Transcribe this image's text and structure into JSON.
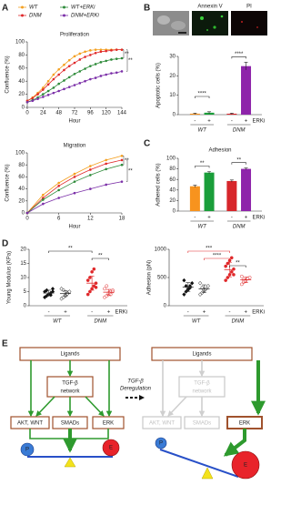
{
  "panels": [
    "A",
    "B",
    "C",
    "D",
    "E"
  ],
  "images": {
    "labels": [
      "Annexin V",
      "PI"
    ]
  },
  "chart_data": [
    {
      "type": "line",
      "title": "Proliferation",
      "xlabel": "Hour",
      "ylabel": "Confluence (%)",
      "x": [
        0,
        8,
        16,
        24,
        32,
        40,
        48,
        56,
        64,
        72,
        80,
        88,
        96,
        104,
        112,
        120,
        128,
        136,
        144
      ],
      "xlim": [
        0,
        144
      ],
      "xticks": [
        0,
        24,
        48,
        72,
        96,
        120,
        144
      ],
      "ylim": [
        0,
        100
      ],
      "yticks": [
        0,
        20,
        40,
        60,
        80,
        100
      ],
      "series": [
        {
          "name": "WT",
          "color": "#f4a020",
          "values": [
            10,
            15,
            22,
            30,
            40,
            50,
            58,
            65,
            72,
            78,
            82,
            85,
            87,
            88,
            88,
            88,
            88,
            88,
            88
          ]
        },
        {
          "name": "DNM",
          "color": "#e0282a",
          "values": [
            10,
            14,
            20,
            27,
            35,
            43,
            50,
            57,
            63,
            68,
            73,
            77,
            80,
            83,
            85,
            86,
            87,
            88,
            88
          ]
        },
        {
          "name": "WT+ERKi",
          "color": "#2e8b3a",
          "values": [
            8,
            11,
            15,
            20,
            25,
            30,
            36,
            41,
            46,
            51,
            55,
            59,
            63,
            66,
            69,
            71,
            73,
            74,
            75
          ]
        },
        {
          "name": "DNM+ERKi",
          "color": "#7b2fa8",
          "values": [
            8,
            10,
            13,
            16,
            19,
            22,
            25,
            28,
            31,
            34,
            37,
            40,
            43,
            45,
            48,
            50,
            52,
            53,
            55
          ]
        }
      ],
      "annotations": [
        "**",
        "**"
      ]
    },
    {
      "type": "line",
      "title": "Migration",
      "xlabel": "Hour",
      "ylabel": "Confluence (%)",
      "x": [
        0,
        3,
        6,
        9,
        12,
        15,
        18
      ],
      "xlim": [
        0,
        18
      ],
      "xticks": [
        0,
        6,
        12,
        18
      ],
      "ylim": [
        0,
        100
      ],
      "yticks": [
        0,
        20,
        40,
        60,
        80,
        100
      ],
      "series": [
        {
          "color": "#f4a020",
          "values": [
            0,
            30,
            50,
            65,
            78,
            88,
            95
          ]
        },
        {
          "color": "#e0282a",
          "values": [
            0,
            25,
            45,
            60,
            72,
            82,
            88
          ]
        },
        {
          "color": "#2e8b3a",
          "values": [
            0,
            22,
            38,
            52,
            63,
            73,
            80
          ]
        },
        {
          "color": "#7b2fa8",
          "values": [
            0,
            15,
            25,
            33,
            40,
            47,
            52
          ]
        }
      ],
      "annotations": [
        "**",
        "**"
      ]
    },
    {
      "type": "bar",
      "ylabel": "Apoptotic cells (%)",
      "categories": [
        "-",
        "+",
        "-",
        "+"
      ],
      "groups": [
        "WT",
        "DNM"
      ],
      "treatment": "ERKi",
      "values": [
        0.5,
        1,
        0.5,
        25
      ],
      "errors": [
        0.3,
        0.5,
        0.3,
        2
      ],
      "colors": [
        "#f7931e",
        "#1a9e3a",
        "#d7262b",
        "#8e24aa"
      ],
      "ylim": [
        0,
        30
      ],
      "yticks": [
        0,
        10,
        20,
        30
      ],
      "annotations": [
        "****",
        "****"
      ]
    },
    {
      "type": "bar",
      "title": "Adhesion",
      "ylabel": "Adhered cells (%)",
      "categories": [
        "-",
        "+",
        "-",
        "+"
      ],
      "groups": [
        "WT",
        "DNM"
      ],
      "treatment": "ERKi",
      "values": [
        47,
        73,
        57,
        80
      ],
      "errors": [
        2,
        2,
        2,
        1.5
      ],
      "colors": [
        "#f7931e",
        "#1a9e3a",
        "#d7262b",
        "#8e24aa"
      ],
      "ylim": [
        0,
        100
      ],
      "yticks": [
        0,
        20,
        40,
        60,
        80,
        100
      ],
      "annotations": [
        "**",
        "**"
      ]
    },
    {
      "type": "strip",
      "ylabel": "Young Modulus (KPa)",
      "categories": [
        "-",
        "+",
        "-",
        "+"
      ],
      "groups": [
        "WT",
        "DNM"
      ],
      "treatment": "ERKi",
      "points": [
        [
          3,
          3.5,
          4,
          4.5,
          5,
          5,
          5.5,
          4,
          3.8,
          6
        ],
        [
          2.5,
          3,
          4,
          4.5,
          5,
          6,
          5.5,
          3.5,
          4.2
        ],
        [
          4,
          5,
          6,
          7,
          8,
          9,
          10,
          12,
          13,
          6.5
        ],
        [
          3,
          3.5,
          4,
          5,
          5.5,
          6,
          7,
          4.5,
          4,
          5
        ]
      ],
      "means": [
        4.5,
        4.3,
        8,
        4.8
      ],
      "errors": [
        1,
        1,
        2.5,
        1
      ],
      "colors": [
        "#111111",
        "#111111",
        "#e0282a",
        "#e0282a"
      ],
      "ylim": [
        0,
        20
      ],
      "yticks": [
        0,
        5,
        10,
        15,
        20
      ],
      "annotations": [
        "**",
        "**"
      ]
    },
    {
      "type": "strip",
      "ylabel": "Adhesion (pN)",
      "categories": [
        "-",
        "+",
        "-",
        "+"
      ],
      "groups": [
        "WT",
        "DNM"
      ],
      "treatment": "ERKi",
      "points": [
        [
          200,
          250,
          300,
          350,
          400,
          450,
          350,
          280,
          320
        ],
        [
          200,
          230,
          260,
          300,
          350,
          400,
          320,
          280
        ],
        [
          450,
          500,
          550,
          600,
          650,
          700,
          750,
          800,
          850,
          550
        ],
        [
          380,
          420,
          450,
          480,
          500,
          520,
          460,
          440
        ]
      ],
      "means": [
        330,
        300,
        640,
        460
      ],
      "errors": [
        80,
        70,
        130,
        50
      ],
      "colors": [
        "#111111",
        "#111111",
        "#e0282a",
        "#e0282a"
      ],
      "ylim": [
        0,
        1000
      ],
      "yticks": [
        0,
        500,
        1000
      ],
      "annotations": [
        "***",
        "****",
        "**"
      ]
    }
  ],
  "diagram": {
    "label": [
      "TGF-β",
      "Deregulation"
    ],
    "left": {
      "ligands": "Ligands",
      "network": [
        "TGF-β",
        "network"
      ],
      "akt": "AKT, WNT",
      "smads": "SMADs",
      "erk": "ERK",
      "p": "P",
      "e": "E"
    },
    "right": {
      "ligands": "Ligands",
      "network": [
        "TGF-β",
        "network"
      ],
      "akt": "AKT, WNT",
      "smads": "SMADs",
      "erk": "ERK",
      "p": "P",
      "e": "E"
    }
  }
}
